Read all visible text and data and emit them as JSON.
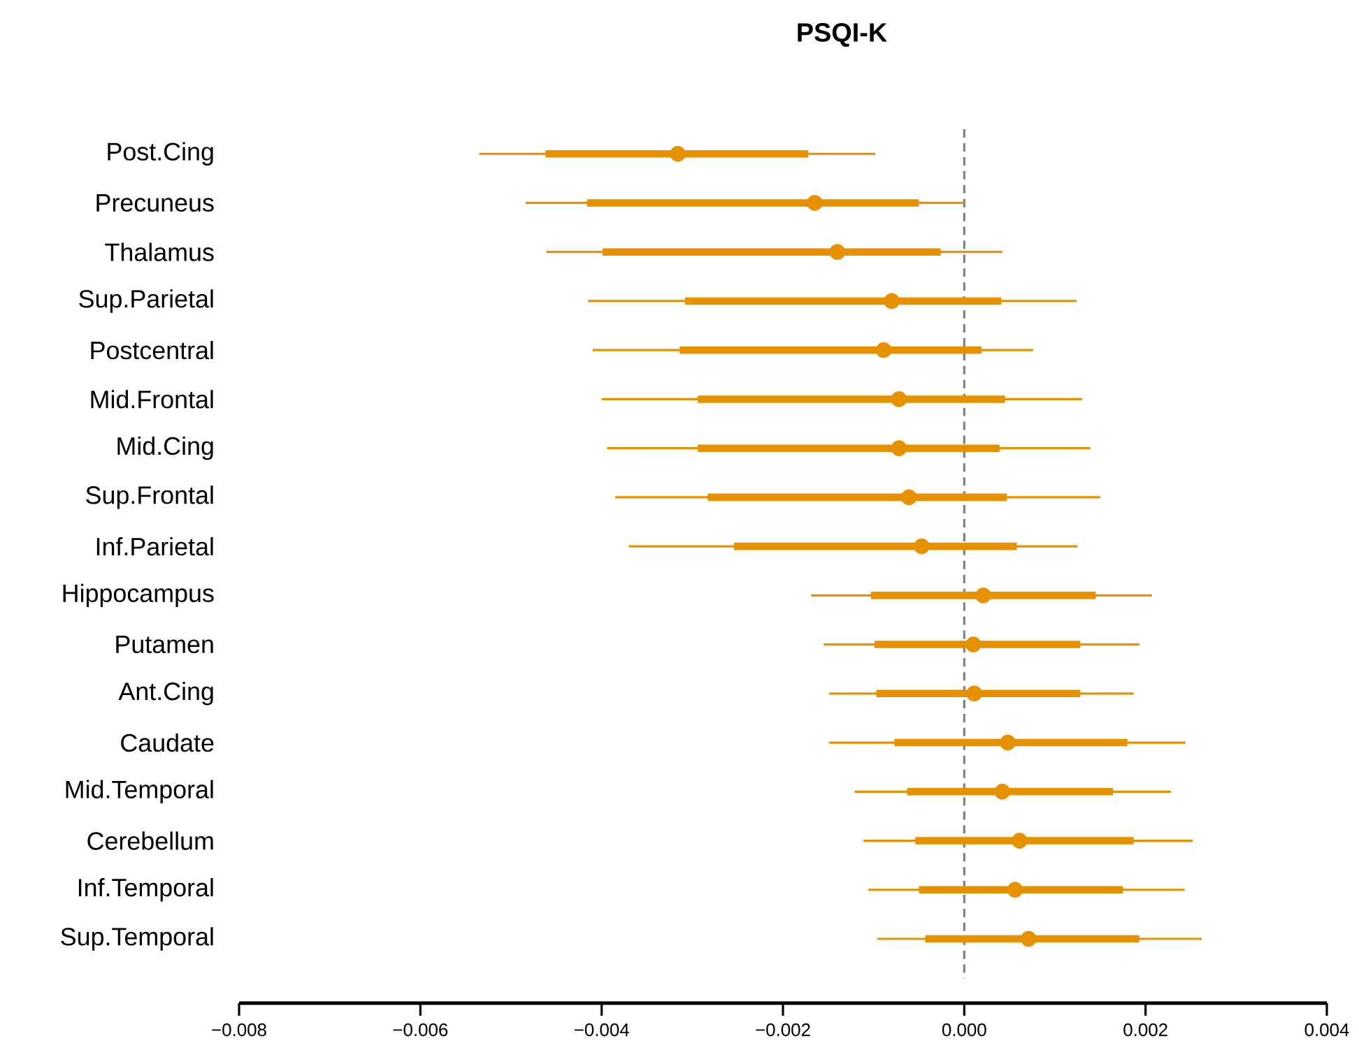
{
  "chart_data": {
    "type": "scatter",
    "title": "PSQI-K",
    "orientation": "horizontal",
    "categories": [
      "Post.Cing",
      "Precuneus",
      "Thalamus",
      "Sup.Parietal",
      "Postcentral",
      "Mid.Frontal",
      "Mid.Cing",
      "Sup.Frontal",
      "Inf.Parietal",
      "Hippocampus",
      "Putamen",
      "Ant.Cing",
      "Caudate",
      "Mid.Temporal",
      "Cerebellum",
      "Inf.Temporal",
      "Sup.Temporal"
    ],
    "xlim": [
      -0.008,
      0.004
    ],
    "xticks": [
      {
        "value": -0.008,
        "label": "−0.008"
      },
      {
        "value": -0.006,
        "label": "−0.006"
      },
      {
        "value": -0.004,
        "label": "−0.004"
      },
      {
        "value": -0.002,
        "label": "−0.002"
      },
      {
        "value": 0,
        "label": "0.000"
      },
      {
        "value": 0.002,
        "label": "0.002"
      },
      {
        "value": 0.004,
        "label": "0.004"
      }
    ],
    "ref_lines": [
      {
        "axis": "x",
        "value": 0,
        "color": "#808080",
        "line_style": "dashed"
      }
    ],
    "series": [
      {
        "type": "bar",
        "color": "#e69100",
        "base": [
          -0.00462,
          -0.00416,
          -0.00399,
          -0.00308,
          -0.00314,
          -0.00294,
          -0.00294,
          -0.00283,
          -0.00254,
          -0.00103,
          -0.00099,
          -0.00097,
          -0.00077,
          -0.00063,
          -0.00054,
          -0.0005,
          -0.00043
        ],
        "values": [
          0.0029,
          0.00366,
          0.00373,
          0.00349,
          0.00333,
          0.00339,
          0.00333,
          0.0033,
          0.00312,
          0.00248,
          0.00227,
          0.00225,
          0.00257,
          0.00227,
          0.00241,
          0.00225,
          0.00236
        ]
      },
      {
        "type": "scatter",
        "color": "#e69100",
        "marker": "circle",
        "values": [
          -0.00316,
          -0.00165,
          -0.0014,
          -0.0008,
          -0.00089,
          -0.00072,
          -0.00072,
          -0.00061,
          -0.00047,
          0.00021,
          0.0001,
          0.00011,
          0.00048,
          0.00042,
          0.00061,
          0.00056,
          0.00071
        ],
        "errors": [
          [
            -0.00535,
            -0.00098
          ],
          [
            -0.00484,
            0.0
          ],
          [
            -0.00461,
            0.00042
          ],
          [
            -0.00415,
            0.00124
          ],
          [
            -0.0041,
            0.00076
          ],
          [
            -0.004,
            0.0013
          ],
          [
            -0.00394,
            0.00139
          ],
          [
            -0.00385,
            0.0015
          ],
          [
            -0.0037,
            0.00125
          ],
          [
            -0.00169,
            0.00207
          ],
          [
            -0.00155,
            0.00193
          ],
          [
            -0.00149,
            0.00187
          ],
          [
            -0.00149,
            0.00244
          ],
          [
            -0.00121,
            0.00228
          ],
          [
            -0.00111,
            0.00252
          ],
          [
            -0.00106,
            0.00243
          ],
          [
            -0.00096,
            0.00262
          ]
        ]
      }
    ]
  }
}
